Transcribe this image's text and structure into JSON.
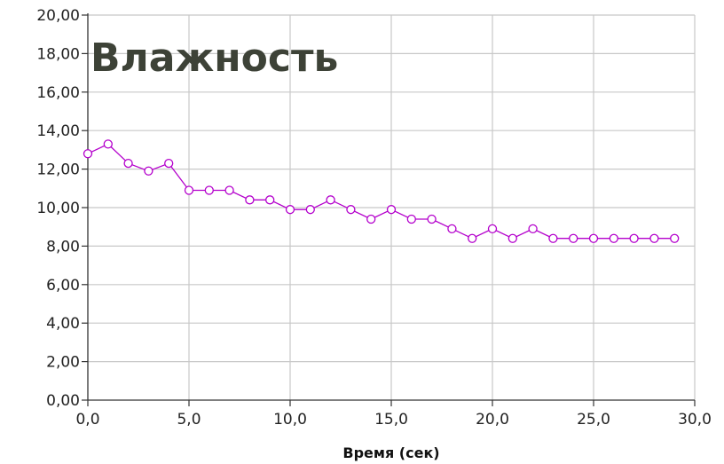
{
  "chart_data": {
    "type": "line",
    "title": "Влажность",
    "xlabel": "Время (сек)",
    "ylabel": "",
    "xlim": [
      0,
      30
    ],
    "ylim": [
      0,
      20
    ],
    "x_ticks": [
      "0,0",
      "5,0",
      "10,0",
      "15,0",
      "20,0",
      "25,0",
      "30,0"
    ],
    "y_ticks": [
      "0,00",
      "2,00",
      "4,00",
      "6,00",
      "8,00",
      "10,00",
      "12,00",
      "14,00",
      "16,00",
      "18,00",
      "20,00"
    ],
    "grid": true,
    "series": [
      {
        "color": "#b400cc",
        "x": [
          0,
          1,
          2,
          3,
          4,
          5,
          6,
          7,
          8,
          9,
          10,
          11,
          12,
          13,
          14,
          15,
          16,
          17,
          18,
          19,
          20,
          21,
          22,
          23,
          24,
          25,
          26,
          27,
          28,
          29
        ],
        "y": [
          12.8,
          13.3,
          12.3,
          11.9,
          12.3,
          10.9,
          10.9,
          10.9,
          10.4,
          10.4,
          9.9,
          9.9,
          10.4,
          9.9,
          9.4,
          9.9,
          9.4,
          9.4,
          8.9,
          8.4,
          8.9,
          8.4,
          8.9,
          8.4,
          8.4,
          8.4,
          8.4,
          8.4,
          8.4,
          8.4
        ]
      }
    ]
  }
}
